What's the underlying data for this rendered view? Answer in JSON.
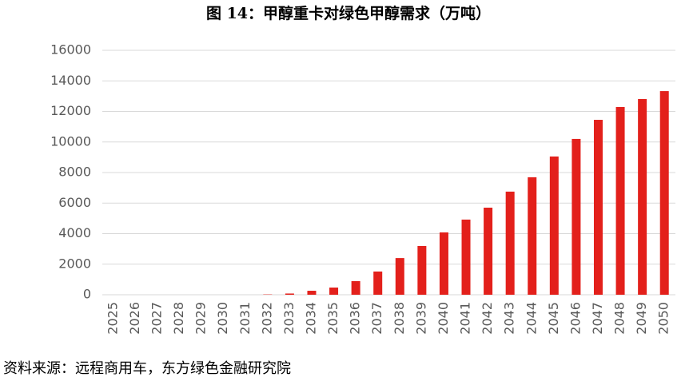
{
  "chart_data": {
    "type": "bar",
    "title": "图 14：甲醇重卡对绿色甲醇需求（万吨）",
    "source": "资料来源：远程商用车，东方绿色金融研究院",
    "categories": [
      "2025",
      "2026",
      "2027",
      "2028",
      "2029",
      "2030",
      "2031",
      "2032",
      "2033",
      "2034",
      "2035",
      "2036",
      "2037",
      "2038",
      "2039",
      "2040",
      "2041",
      "2042",
      "2043",
      "2044",
      "2045",
      "2046",
      "2047",
      "2048",
      "2049",
      "2050"
    ],
    "values": [
      0,
      0,
      0,
      0,
      0,
      0,
      0,
      20,
      80,
      260,
      470,
      890,
      1520,
      2400,
      3190,
      4080,
      4920,
      5700,
      6750,
      7690,
      9050,
      10200,
      11450,
      12290,
      12810,
      13330
    ],
    "color": "#e3201b",
    "ylim": [
      0,
      16000
    ],
    "yticks": [
      0,
      2000,
      4000,
      6000,
      8000,
      10000,
      12000,
      14000,
      16000
    ],
    "grid": true
  }
}
